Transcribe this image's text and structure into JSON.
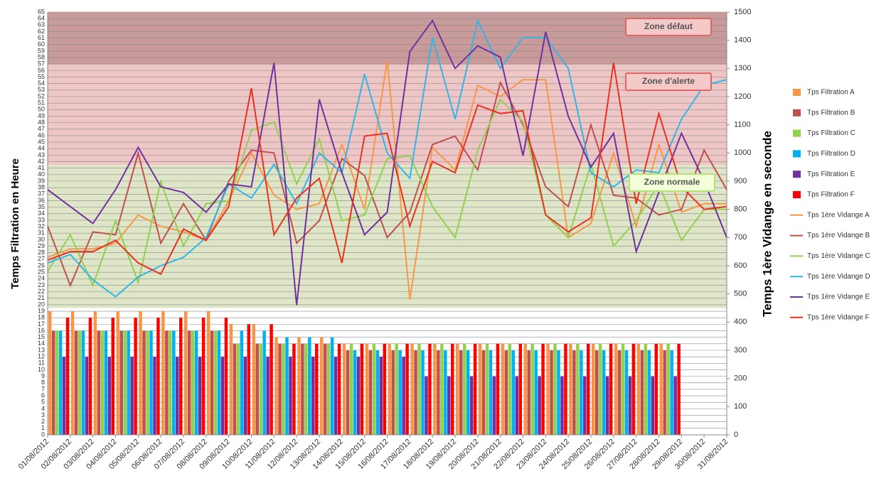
{
  "chart_data": {
    "type": "bar-line",
    "y_label": "Temps  Filtration en  Heure",
    "y2_label": "Temps  1ère Vidange en seconde",
    "categories": [
      "01/08/2012",
      "02/08/2012",
      "03/08/2012",
      "04/08/2012",
      "05/08/2012",
      "06/08/2012",
      "07/08/2012",
      "08/08/2012",
      "09/08/2012",
      "10/08/2012",
      "11/08/2012",
      "12/08/2012",
      "13/08/2012",
      "14/08/2012",
      "15/08/2012",
      "16/08/2012",
      "17/08/2012",
      "18/08/2012",
      "19/08/2012",
      "20/08/2012",
      "21/08/2012",
      "22/08/2012",
      "23/08/2012",
      "24/08/2012",
      "25/08/2012",
      "26/08/2012",
      "27/08/2012",
      "28/08/2012",
      "29/08/2012",
      "30/08/2012",
      "31/08/2012"
    ],
    "ylim": [
      0,
      65
    ],
    "yticks": [
      0,
      1,
      2,
      3,
      4,
      5,
      6,
      7,
      8,
      9,
      10,
      11,
      12,
      13,
      14,
      15,
      16,
      17,
      18,
      19,
      20,
      21,
      22,
      23,
      24,
      25,
      26,
      27,
      28,
      29,
      30,
      31,
      32,
      33,
      34,
      35,
      36,
      37,
      38,
      39,
      40,
      41,
      42,
      43,
      44,
      45,
      46,
      47,
      48,
      49,
      50,
      51,
      52,
      53,
      54,
      55,
      56,
      57,
      58,
      59,
      60,
      61,
      62,
      63,
      64,
      65
    ],
    "y2lim": [
      0,
      1500
    ],
    "y2ticks": [
      0,
      100,
      200,
      300,
      400,
      500,
      600,
      700,
      800,
      900,
      1000,
      1100,
      1200,
      1300,
      1400,
      1500
    ],
    "grid": true,
    "zones": [
      {
        "label": "Zone normale",
        "from": 19.5,
        "to": 41.5,
        "color": "#dfe6c8"
      },
      {
        "label": "Zone d'alerte",
        "from": 41.5,
        "to": 57,
        "color": "#efc6c6"
      },
      {
        "label": "Zone défaut",
        "from": 57,
        "to": 65,
        "color": "#c99a9a"
      }
    ],
    "series": [
      {
        "name": "Tps Filtration A",
        "kind": "bar",
        "color": "#f79646",
        "values": [
          19,
          19,
          19,
          19,
          19,
          19,
          19,
          19,
          17,
          17,
          15,
          15,
          15,
          14,
          14,
          14,
          14,
          14,
          14,
          14,
          14,
          14,
          14,
          14,
          14,
          14,
          14,
          14,
          null,
          null,
          null
        ]
      },
      {
        "name": "Tps Filtration B",
        "kind": "bar",
        "color": "#c0504d",
        "values": [
          16,
          16,
          16,
          16,
          16,
          16,
          16,
          16,
          14,
          14,
          14,
          14,
          14,
          13,
          13,
          13,
          13,
          13,
          13,
          13,
          13,
          13,
          13,
          13,
          13,
          13,
          13,
          13,
          null,
          null,
          null
        ]
      },
      {
        "name": "Tps Filtration C",
        "kind": "bar",
        "color": "#92d050",
        "values": [
          16,
          16,
          16,
          16,
          16,
          16,
          16,
          16,
          14,
          14,
          14,
          14,
          14,
          14,
          14,
          14,
          14,
          14,
          14,
          14,
          14,
          14,
          14,
          14,
          14,
          14,
          14,
          14,
          null,
          null,
          null
        ]
      },
      {
        "name": "Tps Filtration D",
        "kind": "bar",
        "color": "#00b0f0",
        "values": [
          16,
          16,
          16,
          16,
          16,
          16,
          16,
          16,
          16,
          16,
          15,
          15,
          15,
          13,
          13,
          13,
          13,
          13,
          13,
          13,
          13,
          13,
          13,
          13,
          13,
          13,
          13,
          13,
          null,
          null,
          null
        ]
      },
      {
        "name": "Tps Filtration E",
        "kind": "bar",
        "color": "#7030a0",
        "values": [
          12,
          12,
          12,
          12,
          12,
          12,
          12,
          12,
          12,
          12,
          12,
          12,
          12,
          12,
          12,
          12,
          9,
          9,
          9,
          9,
          9,
          9,
          9,
          9,
          9,
          9,
          9,
          9,
          null,
          null,
          null
        ]
      },
      {
        "name": "Tps Filtration F",
        "kind": "bar",
        "color": "#ff0000",
        "values": [
          18,
          18,
          18,
          18,
          18,
          18,
          18,
          18,
          17,
          17,
          14,
          14,
          14,
          14,
          14,
          14,
          14,
          14,
          14,
          14,
          14,
          14,
          14,
          14,
          14,
          14,
          14,
          14,
          null,
          null,
          null
        ]
      },
      {
        "name": "Tps 1ère Vidange A",
        "kind": "line",
        "axis": "y2",
        "color": "#f79646",
        "values": [
          630,
          660,
          660,
          680,
          780,
          740,
          720,
          690,
          830,
          1000,
          850,
          800,
          820,
          1030,
          800,
          1330,
          480,
          1020,
          940,
          1240,
          1200,
          1260,
          1260,
          700,
          750,
          1000,
          740,
          1030,
          790,
          820,
          820
        ]
      },
      {
        "name": "Tps 1ère Vidange B",
        "kind": "line",
        "axis": "y2",
        "color": "#c0504d",
        "values": [
          740,
          530,
          720,
          710,
          1000,
          680,
          820,
          690,
          900,
          1010,
          1000,
          680,
          760,
          980,
          920,
          700,
          790,
          1030,
          1060,
          940,
          1250,
          1100,
          880,
          810,
          1100,
          850,
          840,
          780,
          800,
          1010,
          870
        ]
      },
      {
        "name": "Tps 1ère Vidange C",
        "kind": "line",
        "axis": "y2",
        "color": "#92d050",
        "values": [
          580,
          710,
          530,
          760,
          540,
          900,
          670,
          820,
          830,
          1080,
          1110,
          890,
          1050,
          760,
          780,
          980,
          990,
          810,
          700,
          1010,
          1190,
          1110,
          780,
          700,
          960,
          670,
          760,
          890,
          690,
          800,
          800
        ]
      },
      {
        "name": "Tps 1ère Vidange D",
        "kind": "line",
        "axis": "y2",
        "color": "#31b6e7",
        "values": [
          610,
          640,
          550,
          490,
          560,
          600,
          630,
          700,
          890,
          840,
          960,
          820,
          1000,
          930,
          1280,
          1000,
          910,
          1410,
          1120,
          1470,
          1300,
          1410,
          1410,
          1300,
          930,
          880,
          940,
          930,
          1120,
          1240,
          1260
        ]
      },
      {
        "name": "Tps 1ère Vidange E",
        "kind": "line",
        "axis": "y2",
        "color": "#7030a0",
        "values": [
          870,
          810,
          750,
          870,
          1020,
          880,
          860,
          790,
          890,
          880,
          1320,
          460,
          1190,
          930,
          710,
          790,
          1360,
          1470,
          1300,
          1380,
          1340,
          990,
          1430,
          1130,
          950,
          1070,
          650,
          860,
          1070,
          900,
          700
        ]
      },
      {
        "name": "Tps 1ère Vidange F",
        "kind": "line",
        "axis": "y2",
        "color": "#e8311f",
        "values": [
          620,
          650,
          650,
          690,
          610,
          570,
          730,
          690,
          810,
          1230,
          710,
          840,
          910,
          610,
          1060,
          1070,
          740,
          970,
          930,
          1170,
          1140,
          1150,
          780,
          720,
          770,
          1320,
          820,
          1140,
          880,
          800,
          810
        ]
      }
    ]
  }
}
